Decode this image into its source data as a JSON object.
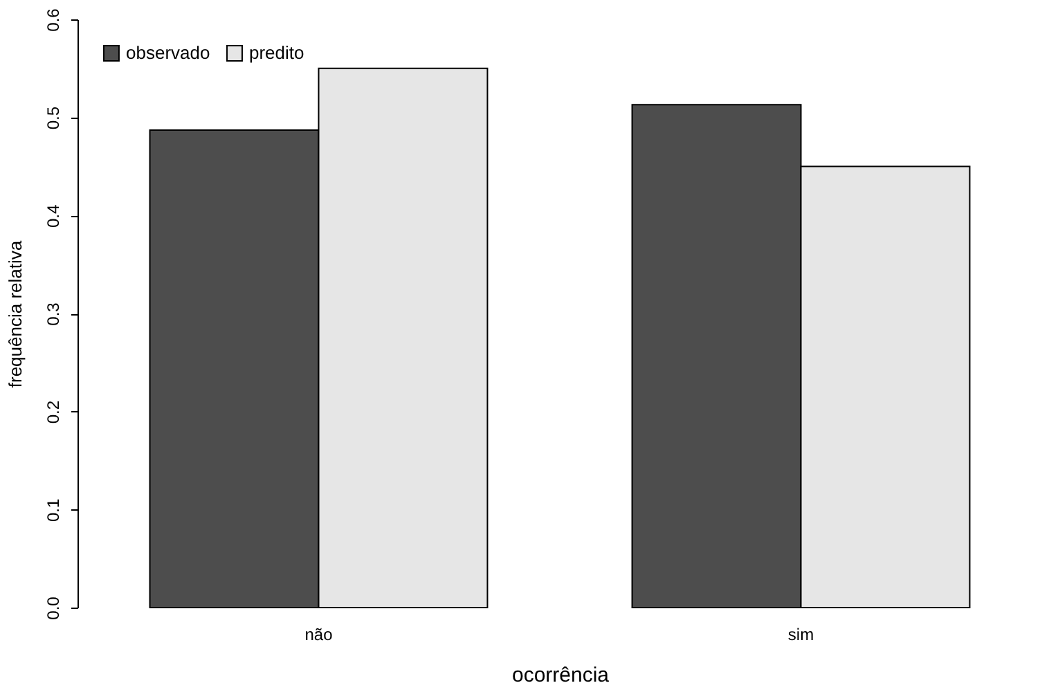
{
  "chart_data": {
    "type": "bar",
    "xlabel": "ocorrência",
    "ylabel": "frequência relativa",
    "categories": [
      "não",
      "sim"
    ],
    "series": [
      {
        "name": "observado",
        "color": "#4d4d4d",
        "values": [
          0.487,
          0.513
        ]
      },
      {
        "name": "predito",
        "color": "#e6e6e6",
        "values": [
          0.55,
          0.45
        ]
      }
    ],
    "ylim": [
      0,
      0.6
    ],
    "yticks": [
      {
        "value": 0,
        "label": "0.0"
      },
      0.1,
      0.2,
      0.3,
      0.4,
      0.5,
      0.6
    ],
    "grid": false,
    "legend": "top left"
  }
}
